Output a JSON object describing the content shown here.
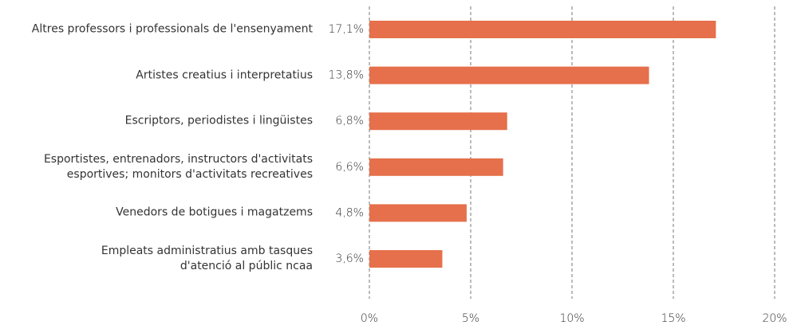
{
  "chart_data": {
    "type": "bar",
    "orientation": "horizontal",
    "categories": [
      "Altres professors i professionals de l'ensenyament",
      "Artistes creatius i interpretatius",
      "Escriptors, periodistes i lingüistes",
      "Esportistes, entrenadors, instructors d'activitats\nesportives; monitors d'activitats recreatives",
      "Venedors de botigues i magatzems",
      "Empleats administratius amb tasques\nd'atenció al públic ncaa"
    ],
    "values": [
      17.1,
      13.8,
      6.8,
      6.6,
      4.8,
      3.6
    ],
    "value_labels": [
      "17,1%",
      "13,8%",
      "6,8%",
      "6,6%",
      "4,8%",
      "3,6%"
    ],
    "color": "#e5704b",
    "xlim": [
      0,
      20
    ],
    "xticks": [
      {
        "value": 0,
        "label": "0%"
      },
      {
        "value": 5,
        "label": "5%"
      },
      {
        "value": 10,
        "label": "10%"
      },
      {
        "value": 15,
        "label": "15%"
      },
      {
        "value": 20,
        "label": "20%"
      }
    ],
    "grid": true
  }
}
